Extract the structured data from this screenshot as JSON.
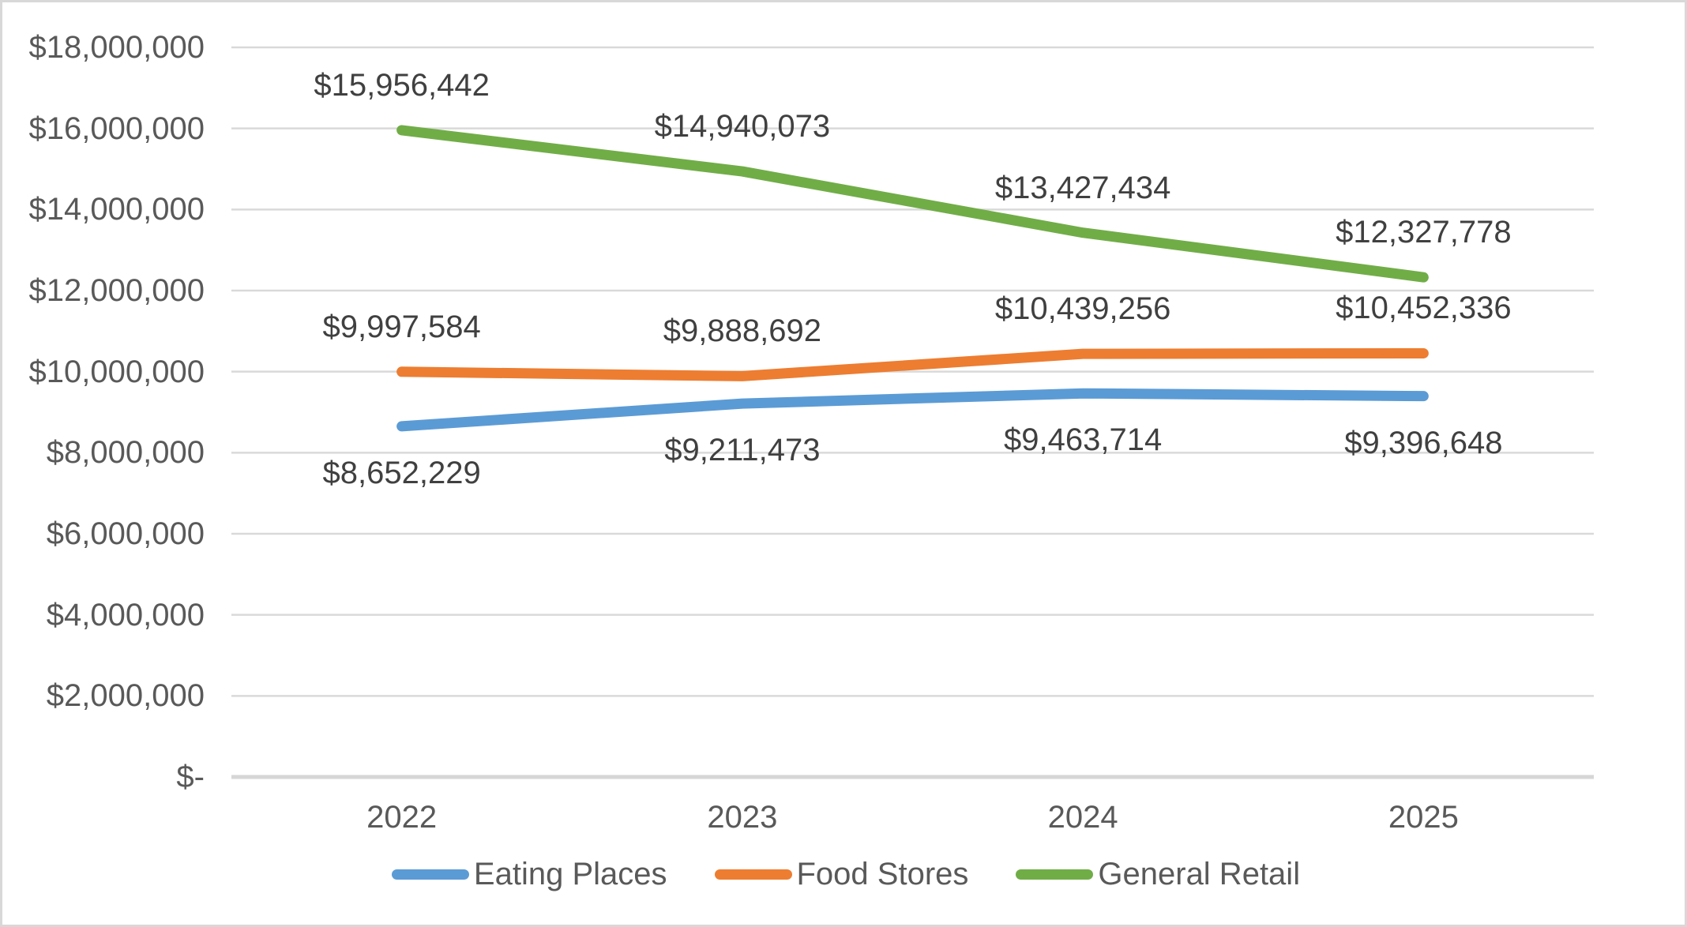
{
  "chart_data": {
    "type": "line",
    "title": "",
    "xlabel": "",
    "ylabel": "",
    "categories": [
      "2022",
      "2023",
      "2024",
      "2025"
    ],
    "series": [
      {
        "name": "Eating Places",
        "color": "#5B9BD5",
        "values": [
          8652229,
          9211473,
          9463714,
          9396648
        ],
        "labels": [
          "$8,652,229",
          "$9,211,473",
          "$9,463,714",
          "$9,396,648"
        ],
        "label_position": "below"
      },
      {
        "name": "Food Stores",
        "color": "#ED7D31",
        "values": [
          9997584,
          9888692,
          10439256,
          10452336
        ],
        "labels": [
          "$9,997,584",
          "$9,888,692",
          "$10,439,256",
          "$10,452,336"
        ],
        "label_position": "above"
      },
      {
        "name": "General Retail",
        "color": "#70AD47",
        "values": [
          15956442,
          14940073,
          13427434,
          12327778
        ],
        "labels": [
          "$15,956,442",
          "$14,940,073",
          "$13,427,434",
          "$12,327,778"
        ],
        "label_position": "above"
      }
    ],
    "ylim": [
      0,
      18000000
    ],
    "ytick_step": 2000000,
    "ytick_labels": [
      "$-",
      "$2,000,000",
      "$4,000,000",
      "$6,000,000",
      "$8,000,000",
      "$10,000,000",
      "$12,000,000",
      "$14,000,000",
      "$16,000,000",
      "$18,000,000"
    ],
    "grid": true,
    "legend_position": "bottom"
  },
  "colors": {
    "background": "#FFFFFF",
    "frame_border": "#D8D8D8",
    "gridline": "#D9D9D9",
    "axis_line": "#D6D6D6",
    "tick_label_text": "#595959",
    "data_label_text": "#404040"
  }
}
